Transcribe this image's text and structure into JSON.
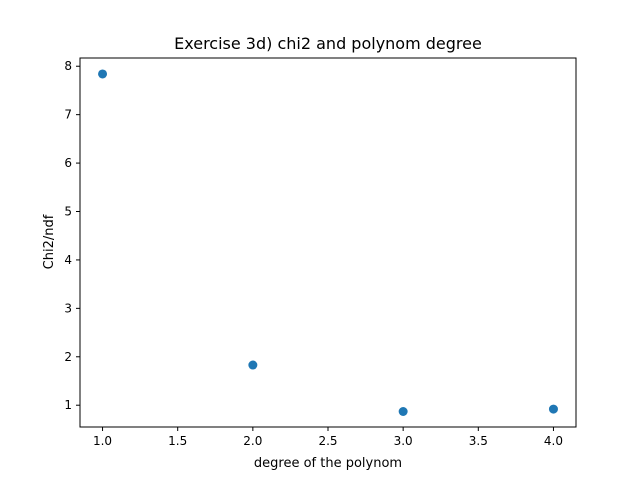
{
  "chart_data": {
    "type": "scatter",
    "title": "Exercise 3d) chi2 and polynom degree",
    "xlabel": "degree of the polynom",
    "ylabel": "Chi2/ndf",
    "xlim": [
      0.85,
      4.15
    ],
    "ylim": [
      0.55,
      8.17
    ],
    "xticks": [
      1.0,
      1.5,
      2.0,
      2.5,
      3.0,
      3.5,
      4.0
    ],
    "xtick_labels": [
      "1.0",
      "1.5",
      "2.0",
      "2.5",
      "3.0",
      "3.5",
      "4.0"
    ],
    "yticks": [
      1,
      2,
      3,
      4,
      5,
      6,
      7,
      8
    ],
    "ytick_labels": [
      "1",
      "2",
      "3",
      "4",
      "5",
      "6",
      "7",
      "8"
    ],
    "grid": false,
    "marker_color": "#1f77b4",
    "x": [
      1,
      2,
      3,
      4
    ],
    "y": [
      7.84,
      1.83,
      0.87,
      0.92
    ]
  }
}
